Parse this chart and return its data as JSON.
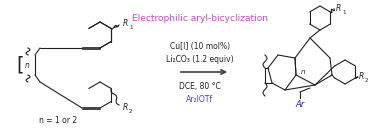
{
  "title": "Electrophilic aryl-bicyclization",
  "title_color": "#cc44cc",
  "condition1": "Cu[I] (10 mol%)",
  "condition2": "Li₂CO₃ (1.2 equiv)",
  "condition3": "DCE, 80 °C",
  "condition4": "Ar₂IOTf",
  "condition4_color": "#4444cc",
  "arrow_color": "#404040",
  "text_color": "#222222",
  "bg_color": "#ffffff",
  "n_label": "n = 1 or 2",
  "figsize": [
    3.78,
    1.3
  ],
  "dpi": 100
}
